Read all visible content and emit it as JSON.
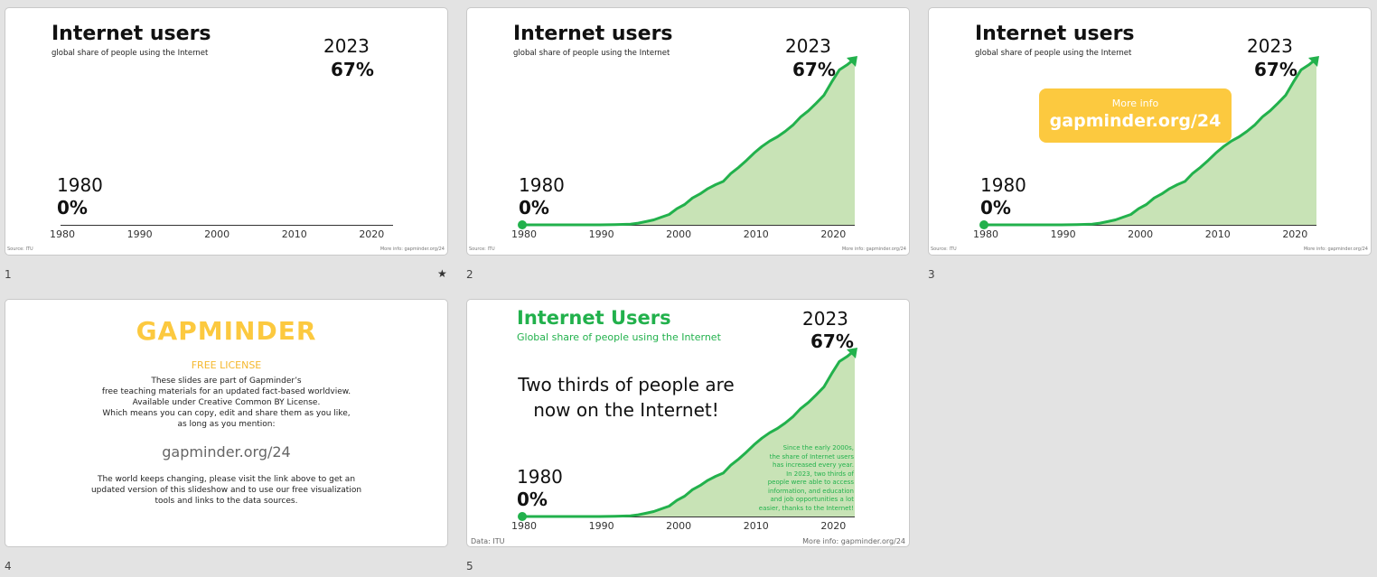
{
  "slides": [
    {
      "number": "1",
      "show_star": true,
      "star": "★",
      "chart": "empty",
      "title": "Internet users",
      "subtitle": "global share of people using the Internet",
      "end_year": "2023",
      "end_value": "67%",
      "start_year": "1980",
      "start_value": "0%",
      "source": "Source: ITU",
      "more_info": "More info: gapminder.org/24"
    },
    {
      "number": "2",
      "chart": "area",
      "title": "Internet users",
      "subtitle": "global share of people using the Internet",
      "end_year": "2023",
      "end_value": "67%",
      "start_year": "1980",
      "start_value": "0%",
      "source": "Source: ITU",
      "more_info": "More info: gapminder.org/24"
    },
    {
      "number": "3",
      "chart": "area",
      "title": "Internet users",
      "subtitle": "global share of people using the Internet",
      "end_year": "2023",
      "end_value": "67%",
      "start_year": "1980",
      "start_value": "0%",
      "source": "Source: ITU",
      "more_info": "More info: gapminder.org/24",
      "info_small": "More info",
      "info_big": "gapminder.org/24"
    },
    {
      "number": "4",
      "logo": "GAPMINDER",
      "license_title": "FREE LICENSE",
      "license_lines": [
        "These slides are part of Gapminder’s",
        "free teaching materials for an updated fact-based worldview.",
        "Available under Creative Common BY License.",
        "Which means you can copy, edit and share them as you like,",
        "as long as you mention:"
      ],
      "url": "gapminder.org/24",
      "keep_lines": [
        "The world keeps changing, please visit the link above to get an",
        "updated version of this slideshow and to use our free visualization",
        "tools and links to the data sources."
      ]
    },
    {
      "number": "5",
      "chart": "area",
      "title": "Internet Users",
      "subtitle": "Global share of people using the Internet",
      "end_year": "2023",
      "end_value": "67%",
      "start_year": "1980",
      "start_value": "0%",
      "message_lines": [
        "Two thirds of people are",
        "now on the Internet!"
      ],
      "note_lines": [
        "Since the early 2000s,",
        "the share of Internet users",
        "has increased every year.",
        "In 2023, two thirds of",
        "people were able to access",
        "information, and education",
        "and job opportunities a lot",
        "easier, thanks to the Internet!"
      ],
      "source": "Data: ITU",
      "more_info": "More info: gapminder.org/24"
    }
  ],
  "colors": {
    "green_line": "#22b14c",
    "green_fill": "#c8e3b6",
    "yellow": "#fcc93f",
    "background": "#e3e3e3"
  },
  "chart_data": {
    "type": "area",
    "xlabel": "",
    "ylabel": "",
    "xlim": [
      1980,
      2023
    ],
    "ylim": [
      0,
      67
    ],
    "x_ticks": [
      "1980",
      "1990",
      "2000",
      "2010",
      "2020"
    ],
    "x": [
      1980,
      1990,
      1992,
      1994,
      1995,
      1996,
      1997,
      1998,
      1999,
      2000,
      2001,
      2002,
      2003,
      2004,
      2005,
      2006,
      2007,
      2008,
      2009,
      2010,
      2011,
      2012,
      2013,
      2014,
      2015,
      2016,
      2017,
      2018,
      2019,
      2020,
      2021,
      2022,
      2023
    ],
    "series": [
      {
        "values": [
          0,
          0,
          0.1,
          0.3,
          0.7,
          1.3,
          2.0,
          3.1,
          4.2,
          6.5,
          8.2,
          10.8,
          12.5,
          14.6,
          16.2,
          17.5,
          20.8,
          23.2,
          26.0,
          29.0,
          31.6,
          33.8,
          35.5,
          37.7,
          40.2,
          43.5,
          46.0,
          49.0,
          52.2,
          57.5,
          62.5,
          64.5,
          67.0
        ]
      }
    ]
  }
}
